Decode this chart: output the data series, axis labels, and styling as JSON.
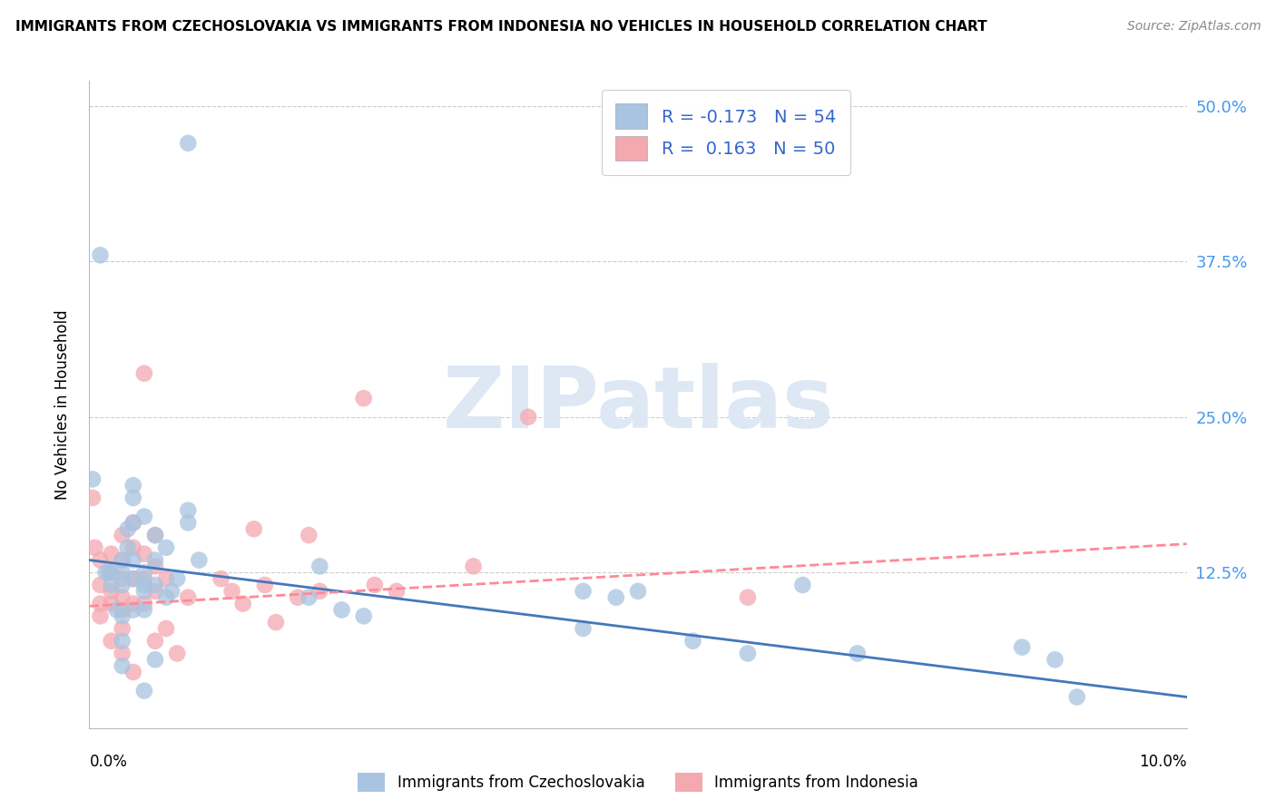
{
  "title": "IMMIGRANTS FROM CZECHOSLOVAKIA VS IMMIGRANTS FROM INDONESIA NO VEHICLES IN HOUSEHOLD CORRELATION CHART",
  "source": "Source: ZipAtlas.com",
  "ylabel": "No Vehicles in Household",
  "yticks": [
    0.0,
    0.125,
    0.25,
    0.375,
    0.5
  ],
  "ytick_labels": [
    "",
    "12.5%",
    "25.0%",
    "37.5%",
    "50.0%"
  ],
  "xlim": [
    0.0,
    0.1
  ],
  "ylim": [
    0.0,
    0.52
  ],
  "legend_label1": "R = -0.173   N = 54",
  "legend_label2": "R =  0.163   N = 50",
  "legend_patch1_color": "#a8c4e0",
  "legend_patch2_color": "#f4a8b0",
  "line1_color": "#4477bb",
  "line2_color": "#ff8899",
  "line2_style": "--",
  "scatter1_color": "#a8c4e0",
  "scatter2_color": "#f4a8b0",
  "watermark_text": "ZIPatlas",
  "watermark_color": "#dde8f4",
  "bottom_legend1": "Immigrants from Czechoslovakia",
  "bottom_legend2": "Immigrants from Indonesia",
  "czecho_x": [
    0.0003,
    0.001,
    0.0015,
    0.0018,
    0.002,
    0.002,
    0.0025,
    0.003,
    0.003,
    0.003,
    0.003,
    0.003,
    0.003,
    0.0035,
    0.0035,
    0.004,
    0.004,
    0.004,
    0.004,
    0.004,
    0.004,
    0.005,
    0.005,
    0.005,
    0.005,
    0.005,
    0.005,
    0.006,
    0.006,
    0.006,
    0.006,
    0.007,
    0.007,
    0.0075,
    0.008,
    0.009,
    0.009,
    0.009,
    0.01,
    0.02,
    0.021,
    0.023,
    0.025,
    0.045,
    0.045,
    0.048,
    0.05,
    0.055,
    0.06,
    0.065,
    0.07,
    0.085,
    0.088,
    0.09
  ],
  "czecho_y": [
    0.2,
    0.38,
    0.125,
    0.125,
    0.125,
    0.115,
    0.095,
    0.135,
    0.125,
    0.115,
    0.09,
    0.07,
    0.05,
    0.145,
    0.16,
    0.195,
    0.185,
    0.165,
    0.135,
    0.12,
    0.095,
    0.17,
    0.125,
    0.115,
    0.11,
    0.095,
    0.03,
    0.155,
    0.135,
    0.115,
    0.055,
    0.145,
    0.105,
    0.11,
    0.12,
    0.165,
    0.47,
    0.175,
    0.135,
    0.105,
    0.13,
    0.095,
    0.09,
    0.11,
    0.08,
    0.105,
    0.11,
    0.07,
    0.06,
    0.115,
    0.06,
    0.065,
    0.055,
    0.025
  ],
  "indonesia_x": [
    0.0003,
    0.0005,
    0.001,
    0.001,
    0.001,
    0.001,
    0.002,
    0.002,
    0.002,
    0.002,
    0.002,
    0.003,
    0.003,
    0.003,
    0.003,
    0.003,
    0.003,
    0.003,
    0.004,
    0.004,
    0.004,
    0.004,
    0.004,
    0.005,
    0.005,
    0.005,
    0.005,
    0.006,
    0.006,
    0.006,
    0.006,
    0.007,
    0.007,
    0.008,
    0.009,
    0.012,
    0.013,
    0.014,
    0.015,
    0.016,
    0.017,
    0.019,
    0.02,
    0.021,
    0.025,
    0.026,
    0.028,
    0.035,
    0.04,
    0.06
  ],
  "indonesia_y": [
    0.185,
    0.145,
    0.135,
    0.115,
    0.1,
    0.09,
    0.14,
    0.125,
    0.11,
    0.1,
    0.07,
    0.155,
    0.135,
    0.12,
    0.105,
    0.095,
    0.08,
    0.06,
    0.165,
    0.145,
    0.12,
    0.1,
    0.045,
    0.285,
    0.14,
    0.12,
    0.1,
    0.155,
    0.13,
    0.11,
    0.07,
    0.12,
    0.08,
    0.06,
    0.105,
    0.12,
    0.11,
    0.1,
    0.16,
    0.115,
    0.085,
    0.105,
    0.155,
    0.11,
    0.265,
    0.115,
    0.11,
    0.13,
    0.25,
    0.105
  ],
  "line1_x0": 0.0,
  "line1_y0": 0.135,
  "line1_x1": 0.1,
  "line1_y1": 0.025,
  "line2_x0": 0.0,
  "line2_y0": 0.098,
  "line2_x1": 0.1,
  "line2_y1": 0.148
}
